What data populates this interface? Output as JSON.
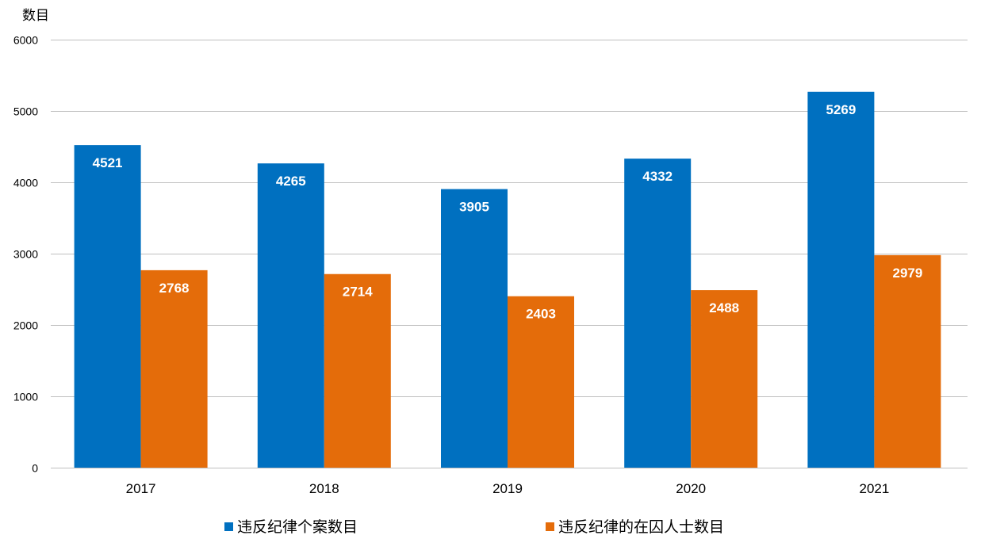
{
  "chart_data": {
    "type": "bar",
    "title": "",
    "xlabel": "",
    "ylabel": "数目",
    "ylim": [
      0,
      6000
    ],
    "yticks": [
      0,
      1000,
      2000,
      3000,
      4000,
      5000,
      6000
    ],
    "grid": true,
    "legend_position": "bottom",
    "categories": [
      "2017",
      "2018",
      "2019",
      "2020",
      "2021"
    ],
    "series": [
      {
        "name": "违反纪律个案数目",
        "color": "#0070c0",
        "values": [
          4521,
          4265,
          3905,
          4332,
          5269
        ]
      },
      {
        "name": "违反纪律的在囚人士数目",
        "color": "#e46c0a",
        "values": [
          2768,
          2714,
          2403,
          2488,
          2979
        ]
      }
    ]
  }
}
